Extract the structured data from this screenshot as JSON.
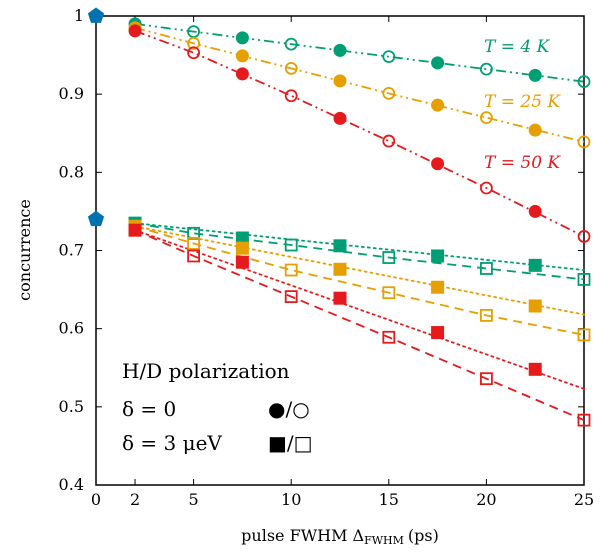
{
  "chart_data": {
    "type": "scatter",
    "xlabel": "pulse FWHM Δ",
    "xlabel_sub": "FWHM",
    "xlabel_unit": "(ps)",
    "ylabel": "concurrence",
    "xlim": [
      0,
      25
    ],
    "ylim": [
      0.4,
      1.0
    ],
    "xticks": [
      0,
      2,
      5,
      10,
      15,
      20,
      25
    ],
    "yticks": [
      0.4,
      0.5,
      0.6,
      0.7,
      0.8,
      0.9,
      1.0
    ],
    "ytick_labels": [
      "0.4",
      "0.5",
      "0.6",
      "0.7",
      "0.8",
      "0.9",
      "1"
    ],
    "grid": false,
    "colors": {
      "T4": "#009e73",
      "T25": "#e69f00",
      "T50": "#e41a1c",
      "zero_pulse": "#0072b2"
    },
    "zero_pulse_points": [
      {
        "x": 0,
        "y": 1.0,
        "marker": "pentagon"
      },
      {
        "x": 0,
        "y": 0.74,
        "marker": "pentagon"
      }
    ],
    "series": [
      {
        "temp": "T4",
        "label_text": "T = 4 K",
        "delta": "0",
        "x": [
          2,
          5,
          7.5,
          10,
          12.5,
          15,
          17.5,
          20,
          22.5,
          25
        ],
        "y": [
          0.99,
          0.98,
          0.972,
          0.964,
          0.956,
          0.948,
          0.94,
          0.932,
          0.924,
          0.916
        ]
      },
      {
        "temp": "T25",
        "label_text": "T = 25 K",
        "delta": "0",
        "x": [
          2,
          5,
          7.5,
          10,
          12.5,
          15,
          17.5,
          20,
          22.5,
          25
        ],
        "y": [
          0.985,
          0.965,
          0.949,
          0.933,
          0.917,
          0.901,
          0.886,
          0.87,
          0.854,
          0.839
        ]
      },
      {
        "temp": "T50",
        "label_text": "T = 50 K",
        "delta": "0",
        "x": [
          2,
          5,
          7.5,
          10,
          12.5,
          15,
          17.5,
          20,
          22.5,
          25
        ],
        "y": [
          0.981,
          0.953,
          0.926,
          0.898,
          0.869,
          0.84,
          0.811,
          0.78,
          0.75,
          0.718
        ]
      },
      {
        "temp": "T4",
        "delta": "3",
        "x": [
          2,
          5,
          7.5,
          10,
          12.5,
          15,
          17.5,
          20,
          22.5,
          25
        ],
        "y": [
          0.735,
          0.722,
          0.716,
          0.707,
          0.706,
          0.691,
          0.693,
          0.677,
          0.681,
          0.663
        ]
      },
      {
        "temp": "T25",
        "delta": "3",
        "x": [
          2,
          5,
          7.5,
          10,
          12.5,
          15,
          17.5,
          20,
          22.5,
          25
        ],
        "y": [
          0.731,
          0.709,
          0.703,
          0.675,
          0.676,
          0.646,
          0.653,
          0.617,
          0.629,
          0.592
        ]
      },
      {
        "temp": "T50",
        "delta": "3",
        "x": [
          2,
          5,
          7.5,
          10,
          12.5,
          15,
          17.5,
          20,
          22.5,
          25
        ],
        "y": [
          0.726,
          0.693,
          0.685,
          0.641,
          0.639,
          0.589,
          0.595,
          0.536,
          0.548,
          0.483
        ]
      }
    ],
    "dotted_lines": [
      {
        "temp": "T4",
        "x": [
          2,
          25
        ],
        "y": [
          0.735,
          0.675
        ]
      },
      {
        "temp": "T25",
        "x": [
          2,
          25
        ],
        "y": [
          0.731,
          0.618
        ]
      },
      {
        "temp": "T50",
        "x": [
          2,
          25
        ],
        "y": [
          0.726,
          0.523
        ]
      }
    ],
    "legend": {
      "title_text": "H/D polarization",
      "row1_text": "δ = 0",
      "row1_markers": "●/○",
      "row2_text": "δ = 3 μeV",
      "row2_markers": "■/□"
    }
  }
}
